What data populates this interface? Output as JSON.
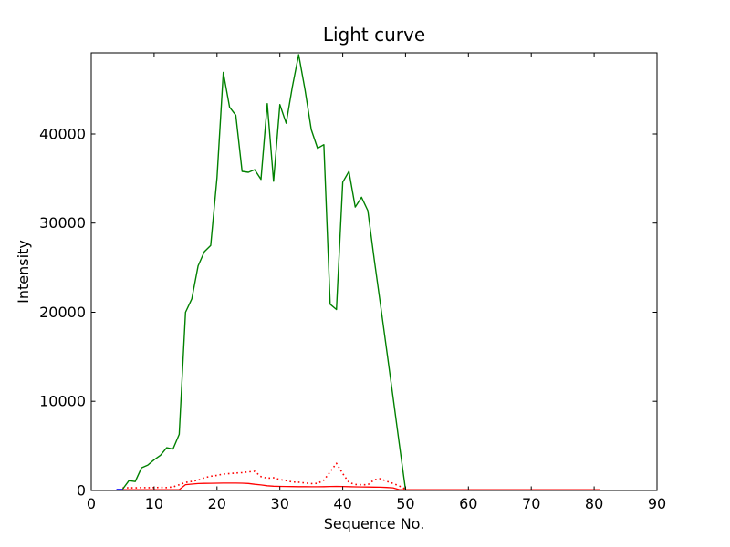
{
  "figure": {
    "title": "Light curve",
    "xlabel": "Sequence No.",
    "ylabel": "Intensity",
    "background_color": "#ffffff",
    "frame_color": "#000000"
  },
  "chart_data": {
    "type": "line",
    "title": "Light curve",
    "xlabel": "Sequence No.",
    "ylabel": "Intensity",
    "xlim": [
      0,
      90
    ],
    "ylim": [
      0,
      49100
    ],
    "x_ticks": [
      0,
      10,
      20,
      30,
      40,
      50,
      60,
      70,
      80,
      90
    ],
    "y_ticks": [
      0,
      10000,
      20000,
      30000,
      40000
    ],
    "grid": false,
    "legend": "none",
    "series": [
      {
        "name": "dotted-red-curve",
        "color": "#ff0000",
        "style": "dotted",
        "width": 1.6,
        "points": [
          [
            5,
            300
          ],
          [
            6,
            310
          ],
          [
            7,
            300
          ],
          [
            8,
            330
          ],
          [
            9,
            310
          ],
          [
            10,
            330
          ],
          [
            11,
            340
          ],
          [
            12,
            330
          ],
          [
            13,
            400
          ],
          [
            14,
            640
          ],
          [
            15,
            900
          ],
          [
            16,
            1020
          ],
          [
            17,
            1160
          ],
          [
            18,
            1430
          ],
          [
            19,
            1600
          ],
          [
            20,
            1700
          ],
          [
            21,
            1840
          ],
          [
            22,
            1900
          ],
          [
            23,
            1950
          ],
          [
            24,
            2000
          ],
          [
            25,
            2090
          ],
          [
            26,
            2150
          ],
          [
            27,
            1550
          ],
          [
            28,
            1380
          ],
          [
            29,
            1430
          ],
          [
            30,
            1230
          ],
          [
            31,
            1100
          ],
          [
            32,
            950
          ],
          [
            33,
            930
          ],
          [
            34,
            840
          ],
          [
            35,
            780
          ],
          [
            36,
            800
          ],
          [
            37,
            1160
          ],
          [
            38,
            2100
          ],
          [
            39,
            3050
          ],
          [
            40,
            1900
          ],
          [
            41,
            900
          ],
          [
            42,
            680
          ],
          [
            43,
            640
          ],
          [
            44,
            640
          ],
          [
            45,
            1200
          ],
          [
            46,
            1330
          ],
          [
            47,
            1020
          ],
          [
            48,
            800
          ],
          [
            49,
            500
          ],
          [
            50,
            150
          ]
        ]
      },
      {
        "name": "solid-red-baseline",
        "color": "#ff0000",
        "style": "solid",
        "width": 1.3,
        "points": [
          [
            4,
            0
          ],
          [
            5,
            0
          ],
          [
            6,
            0
          ],
          [
            7,
            0
          ],
          [
            8,
            0
          ],
          [
            9,
            0
          ],
          [
            10,
            0
          ],
          [
            11,
            0
          ],
          [
            12,
            0
          ],
          [
            13,
            0
          ],
          [
            14,
            0
          ],
          [
            15,
            650
          ],
          [
            16,
            720
          ],
          [
            17,
            780
          ],
          [
            18,
            800
          ],
          [
            19,
            810
          ],
          [
            20,
            820
          ],
          [
            21,
            830
          ],
          [
            22,
            830
          ],
          [
            23,
            830
          ],
          [
            24,
            820
          ],
          [
            25,
            790
          ],
          [
            26,
            700
          ],
          [
            27,
            620
          ],
          [
            28,
            530
          ],
          [
            29,
            480
          ],
          [
            30,
            460
          ],
          [
            31,
            450
          ],
          [
            32,
            440
          ],
          [
            33,
            430
          ],
          [
            34,
            430
          ],
          [
            35,
            420
          ],
          [
            36,
            420
          ],
          [
            37,
            430
          ],
          [
            38,
            450
          ],
          [
            39,
            460
          ],
          [
            40,
            450
          ],
          [
            41,
            430
          ],
          [
            42,
            410
          ],
          [
            43,
            400
          ],
          [
            44,
            390
          ],
          [
            45,
            380
          ],
          [
            46,
            370
          ],
          [
            47,
            340
          ],
          [
            48,
            300
          ],
          [
            49,
            0
          ],
          [
            50,
            0
          ],
          [
            55,
            0
          ],
          [
            60,
            0
          ],
          [
            65,
            0
          ],
          [
            70,
            0
          ],
          [
            75,
            0
          ],
          [
            81,
            0
          ]
        ]
      },
      {
        "name": "green-intensity-curve",
        "color": "#008000",
        "style": "solid",
        "width": 1.4,
        "points": [
          [
            5,
            150
          ],
          [
            6,
            1100
          ],
          [
            7,
            1000
          ],
          [
            8,
            2550
          ],
          [
            9,
            2850
          ],
          [
            10,
            3450
          ],
          [
            11,
            3950
          ],
          [
            12,
            4800
          ],
          [
            13,
            4650
          ],
          [
            14,
            6300
          ],
          [
            15,
            20000
          ],
          [
            16,
            21500
          ],
          [
            17,
            25200
          ],
          [
            18,
            26800
          ],
          [
            19,
            27500
          ],
          [
            20,
            35100
          ],
          [
            21,
            46900
          ],
          [
            22,
            43000
          ],
          [
            23,
            42100
          ],
          [
            24,
            35800
          ],
          [
            25,
            35700
          ],
          [
            26,
            36000
          ],
          [
            27,
            34900
          ],
          [
            28,
            43400
          ],
          [
            29,
            34700
          ],
          [
            30,
            43300
          ],
          [
            31,
            41200
          ],
          [
            32,
            45300
          ],
          [
            33,
            48900
          ],
          [
            34,
            45000
          ],
          [
            35,
            40500
          ],
          [
            36,
            38400
          ],
          [
            37,
            38800
          ],
          [
            38,
            20900
          ],
          [
            39,
            20300
          ],
          [
            40,
            34600
          ],
          [
            41,
            35800
          ],
          [
            42,
            31800
          ],
          [
            43,
            32900
          ],
          [
            44,
            31400
          ],
          [
            45,
            26000
          ],
          [
            46,
            20900
          ],
          [
            47,
            15700
          ],
          [
            48,
            10500
          ],
          [
            49,
            5200
          ],
          [
            50,
            50
          ]
        ]
      },
      {
        "name": "blue-segment",
        "color": "#0000ff",
        "style": "solid",
        "width": 1.8,
        "points": [
          [
            4,
            0
          ],
          [
            5,
            0
          ]
        ]
      }
    ]
  }
}
